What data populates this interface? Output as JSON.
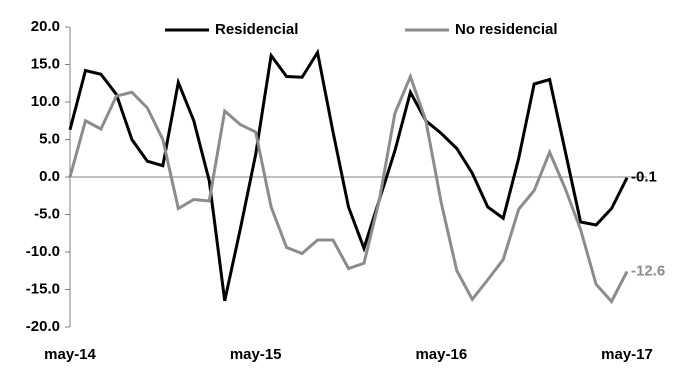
{
  "chart_data": {
    "type": "line",
    "categories": [
      "may-14",
      null,
      null,
      null,
      null,
      null,
      null,
      null,
      null,
      null,
      null,
      null,
      "may-15",
      null,
      null,
      null,
      null,
      null,
      null,
      null,
      null,
      null,
      null,
      null,
      "may-16",
      null,
      null,
      null,
      null,
      null,
      null,
      null,
      null,
      null,
      null,
      null,
      "may-17"
    ],
    "series": [
      {
        "name": "Residencial",
        "color": "#000000",
        "values": [
          6.3,
          14.2,
          13.7,
          11.0,
          5.0,
          2.1,
          1.5,
          12.6,
          7.5,
          -0.5,
          -16.5,
          -7.0,
          3.0,
          16.2,
          13.4,
          13.3,
          16.6,
          6.0,
          -4.0,
          -9.5,
          -3.0,
          3.5,
          11.3,
          7.5,
          5.8,
          3.8,
          0.5,
          -4.0,
          -5.5,
          2.5,
          12.4,
          13.0,
          3.5,
          -6.0,
          -6.4,
          -4.2,
          -0.1
        ]
      },
      {
        "name": "No residencial",
        "color": "#8c8c8c",
        "values": [
          0.0,
          7.5,
          6.4,
          10.8,
          11.3,
          9.2,
          5.0,
          -4.2,
          -3.0,
          -3.2,
          8.8,
          7.0,
          6.0,
          -4.0,
          -9.4,
          -10.2,
          -8.4,
          -8.4,
          -12.2,
          -11.5,
          -3.0,
          8.5,
          13.4,
          7.5,
          -3.5,
          -12.5,
          -16.3,
          -13.7,
          -11.0,
          -4.3,
          -1.8,
          3.3,
          -1.5,
          -7.0,
          -14.3,
          -16.6,
          -12.6
        ]
      }
    ],
    "ylim": [
      -20,
      20
    ],
    "yticks": [
      {
        "value": -20,
        "label": "-20.0"
      },
      {
        "value": -15,
        "label": "-15.0"
      },
      {
        "value": -10,
        "label": "-10.0"
      },
      {
        "value": -5,
        "label": "-5.0"
      },
      {
        "value": 0,
        "label": "0.0"
      },
      {
        "value": 5,
        "label": "5.0"
      },
      {
        "value": 10,
        "label": "10.0"
      },
      {
        "value": 15,
        "label": "15.0"
      },
      {
        "value": 20,
        "label": "20.0"
      }
    ],
    "legend": "top",
    "end_labels": true
  }
}
